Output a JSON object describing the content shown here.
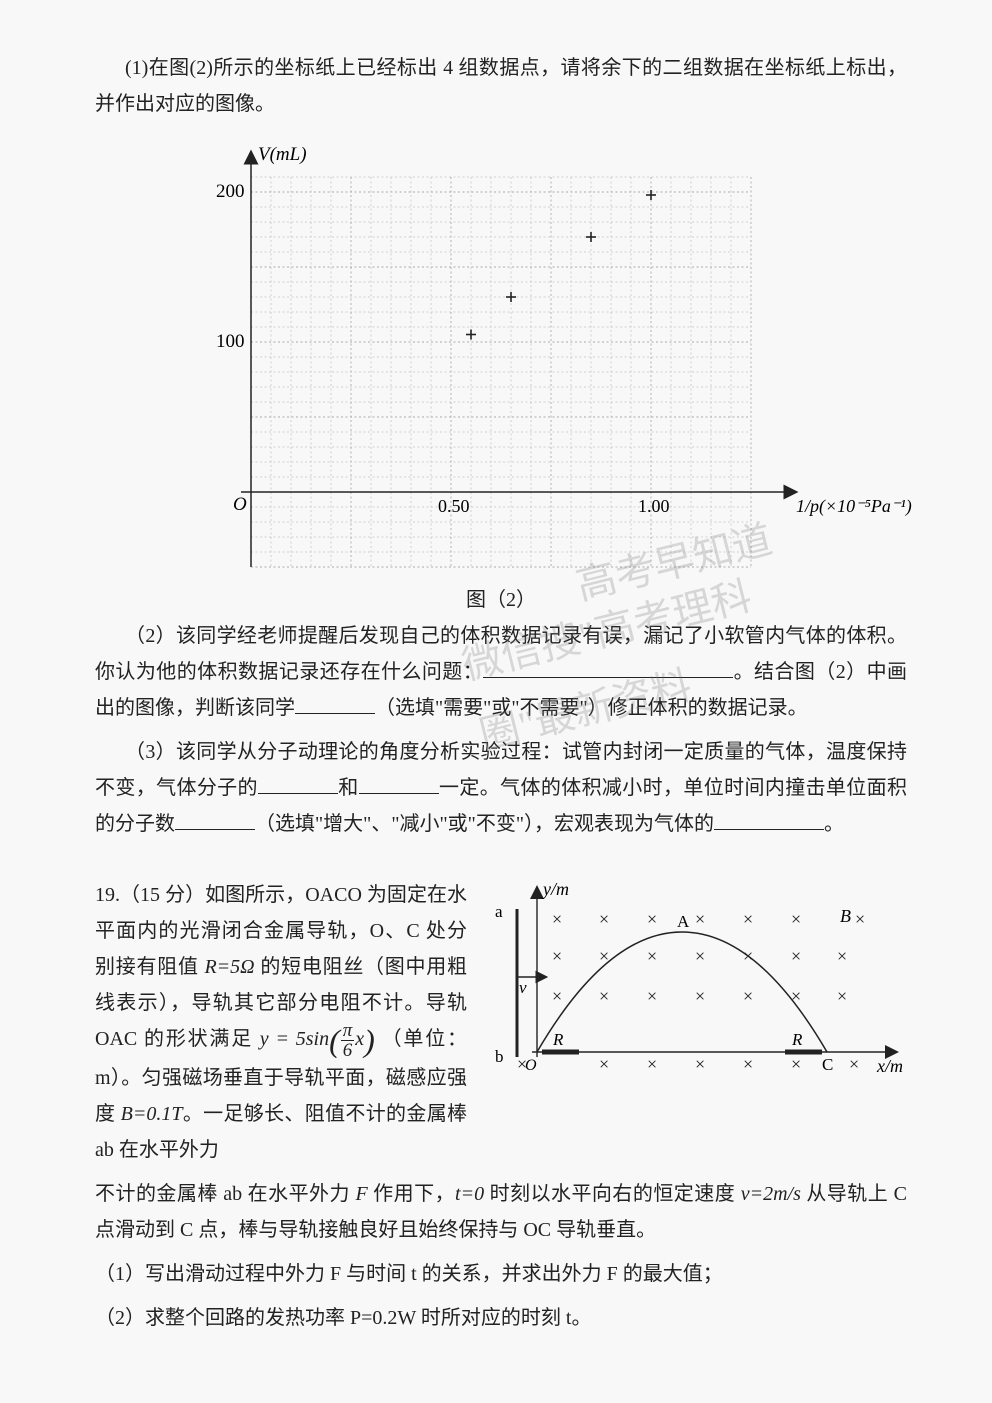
{
  "q1": {
    "text": "(1)在图(2)所示的坐标纸上已经标出 4 组数据点，请将余下的二组数据在坐标纸上标出，并作出对应的图像。"
  },
  "chart": {
    "type": "scatter",
    "caption": "图（2）",
    "y_label": "V(mL)",
    "x_label": "1/p(×10⁻⁵Pa⁻¹)",
    "xlim": [
      0,
      1.25
    ],
    "ylim": [
      -50,
      210
    ],
    "x_ticks": [
      0.5,
      1.0
    ],
    "x_tick_labels": [
      "0.50",
      "1.00"
    ],
    "y_ticks": [
      100,
      200
    ],
    "y_tick_labels": [
      "100",
      "200"
    ],
    "origin_label": "O",
    "grid_minor_divisions": 5,
    "grid_major_x_step": 0.25,
    "grid_major_y_step": 50,
    "grid_color": "#888",
    "axis_color": "#222",
    "point_marker": "plus",
    "points": [
      [
        0.55,
        105
      ],
      [
        0.65,
        130
      ],
      [
        0.85,
        170
      ],
      [
        1.0,
        198
      ]
    ]
  },
  "q2": {
    "line1": "（2）该同学经老师提醒后发现自己的体积数据记录有误，漏记了小软管内气体的体积。你认为他的体积数据记录还存在什么问题：",
    "line1_after": "。结合图（2）中画出的图像，判断该同学",
    "line2_after": "（选填\"需要\"或\"不需要\"）修正体积的数据记录。"
  },
  "q3": {
    "part1": "（3）该同学从分子动理论的角度分析实验过程：试管内封闭一定质量的气体，温度保持不变，气体分子的",
    "part2": "和",
    "part3": "一定。气体的体积减小时，单位时间内撞击单位面积的分子数",
    "part4": "（选填\"增大\"、\"减小\"或\"不变\"），宏观表现为气体的",
    "part5": "。"
  },
  "q19": {
    "number": "19.（15 分）",
    "intro1": "如图所示，OACO 为固定在水平面内的光滑闭合金属导轨，O、C 处分别接有阻值 ",
    "r_value": "R=5Ω",
    "intro2": " 的短电阻丝（图中用粗线表示），导轨其它部分电阻不计。导轨 OAC 的形状满足 ",
    "formula_lhs": "y = 5sin",
    "formula_frac_num": "π",
    "formula_frac_den": "6",
    "formula_var": "x",
    "intro3": "（单位：m）。匀强磁场垂直于导轨平面，磁感应强度 ",
    "b_value": "B=0.1T",
    "intro4": "。一足够长、阻值不计的金属棒 ab 在水平外力 ",
    "intro5": " 作用下，",
    "t_value": "t=0",
    "intro6": " 时刻以水平向右的恒定速度 ",
    "v_value": "v=2m/s",
    "intro7": " 从导轨上 C 点滑动到 C 点，棒与导轨接触良好且始终保持与 OC 导轨垂直。",
    "sub1": "（1）写出滑动过程中外力 F 与时间 t 的关系，并求出外力 F 的最大值；",
    "sub2": "（2）求整个回路的发热功率 P=0.2W 时所对应的时刻 t。"
  },
  "diagram": {
    "labels": {
      "a": "a",
      "b": "b",
      "B": "B",
      "v": "v",
      "O": "O",
      "A": "A",
      "C": "C",
      "R1": "R",
      "R2": "R",
      "y_axis": "y/m",
      "x_axis": "x/m"
    },
    "colors": {
      "axis": "#222",
      "field_marker": "#222",
      "rod": "#222",
      "curve": "#222"
    },
    "field_rows": 4,
    "field_cols": 7
  },
  "watermark": {
    "line1": "高考早知道",
    "line2": "微信搜\"高考理科圈\"最新资料"
  }
}
